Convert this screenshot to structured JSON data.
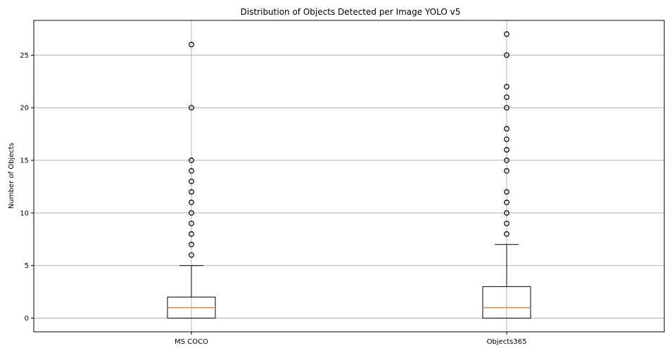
{
  "chart_data": {
    "type": "box",
    "title": "Distribution of Objects Detected per Image YOLO v5",
    "xlabel": "",
    "ylabel": "Number of Objects",
    "ylim": [
      -1.3,
      28.3
    ],
    "yticks": [
      0,
      5,
      10,
      15,
      20,
      25
    ],
    "grid": true,
    "colors": {
      "box": "#000000",
      "median": "#ff7f0e",
      "grid": "#b0b0b0",
      "outlier": "#000000"
    },
    "categories": [
      "MS COCO",
      "Objects365"
    ],
    "boxes": [
      {
        "label": "MS COCO",
        "min": 0,
        "q1": 0,
        "median": 1,
        "q3": 2,
        "max": 5,
        "outliers": [
          6,
          7,
          8,
          9,
          10,
          11,
          12,
          13,
          14,
          15,
          20,
          26
        ]
      },
      {
        "label": "Objects365",
        "min": 0,
        "q1": 0,
        "median": 1,
        "q3": 3,
        "max": 7,
        "outliers": [
          8,
          9,
          10,
          11,
          12,
          14,
          15,
          16,
          17,
          18,
          20,
          21,
          22,
          25,
          27
        ]
      }
    ]
  }
}
